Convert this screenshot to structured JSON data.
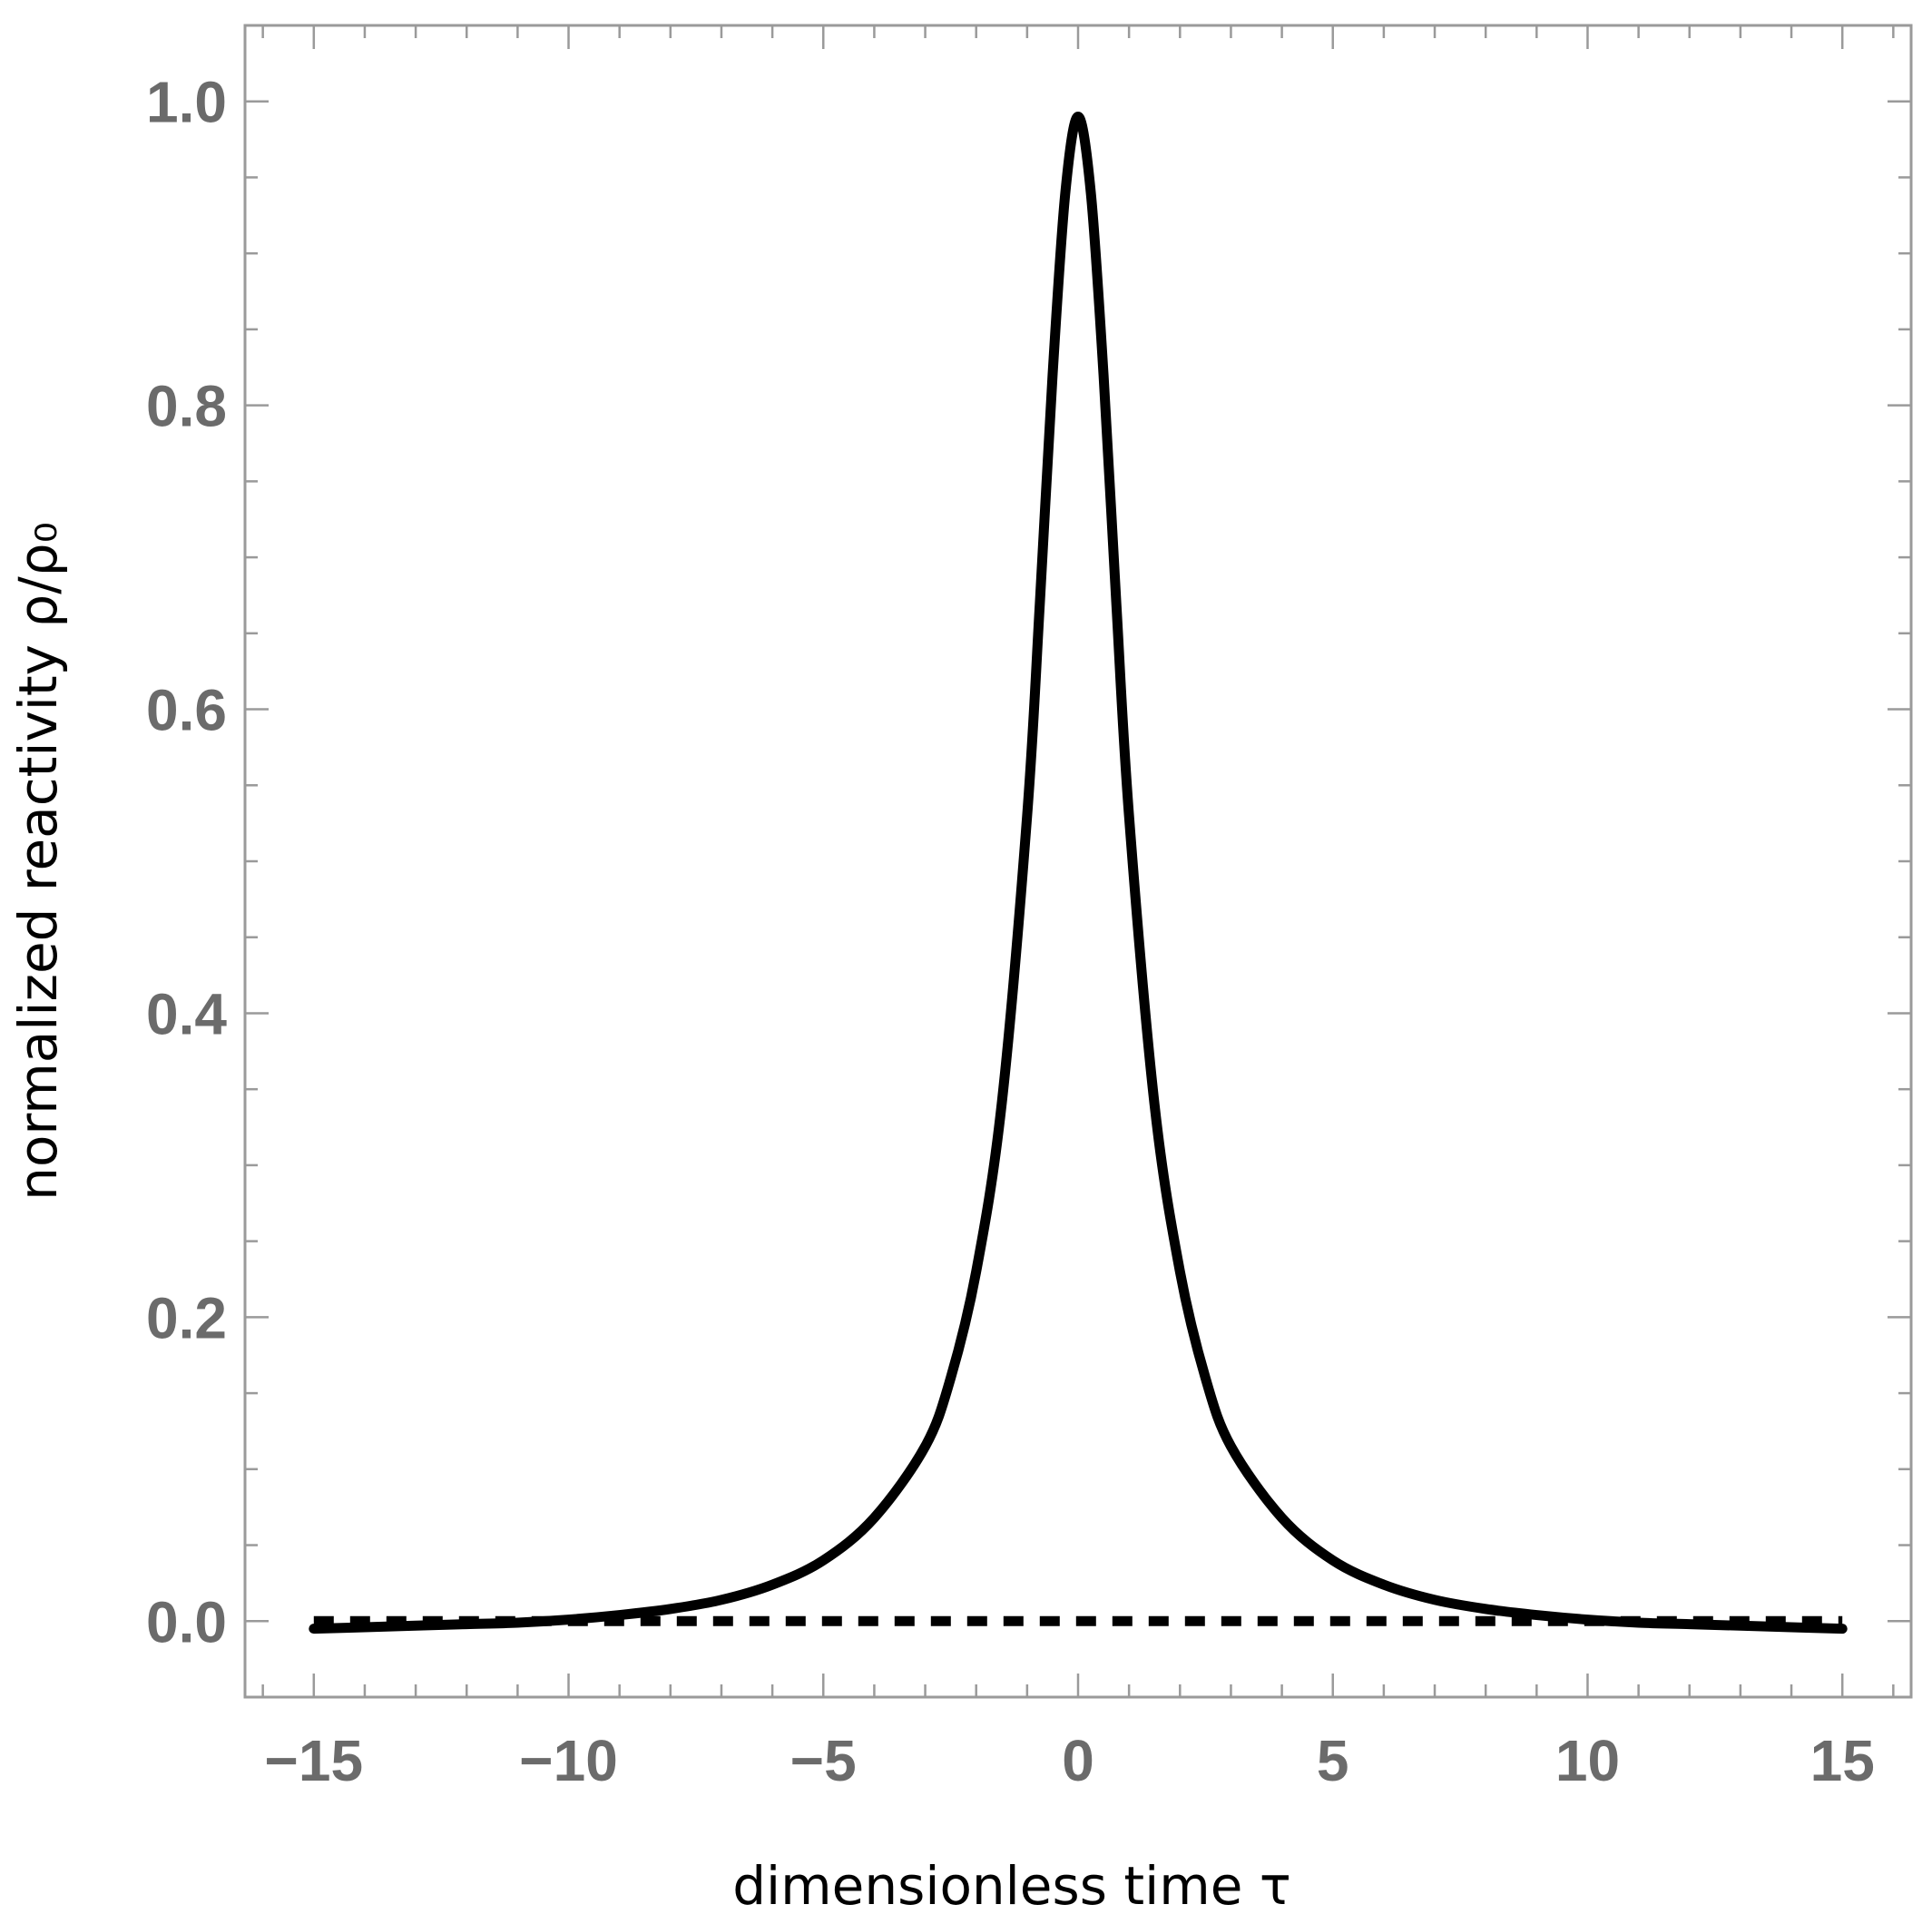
{
  "chart_data": {
    "type": "line",
    "title": "",
    "xlabel": "dimensionless time τ",
    "ylabel": "normalized reactivity ρ/ρ₀",
    "xlim": [
      -16.35,
      16.35
    ],
    "ylim": [
      -0.05,
      1.05
    ],
    "x_ticks": [
      -15,
      -10,
      -5,
      0,
      5,
      10,
      15
    ],
    "x_tick_labels": [
      "−15",
      "−10",
      "−5",
      "0",
      "5",
      "10",
      "15"
    ],
    "y_ticks": [
      0.0,
      0.2,
      0.4,
      0.6,
      0.8,
      1.0
    ],
    "y_tick_labels": [
      "0.0",
      "0.2",
      "0.4",
      "0.6",
      "0.8",
      "1.0"
    ],
    "grid": false,
    "legend": "none",
    "series": [
      {
        "style": "solid",
        "color": "#000000",
        "x": [
          -15,
          -14,
          -13,
          -12,
          -11,
          -10,
          -9,
          -8,
          -7,
          -6,
          -5,
          -4,
          -3,
          -2.5,
          -2,
          -1.5,
          -1,
          -0.75,
          -0.5,
          -0.25,
          0,
          0.25,
          0.5,
          0.75,
          1,
          1.5,
          2,
          2.5,
          3,
          4,
          5,
          6,
          7,
          8,
          9,
          10,
          11,
          12,
          13,
          14,
          15
        ],
        "y": [
          -0.005,
          -0.004,
          -0.003,
          -0.002,
          -0.001,
          0.001,
          0.004,
          0.008,
          0.014,
          0.024,
          0.04,
          0.068,
          0.115,
          0.16,
          0.23,
          0.34,
          0.53,
          0.67,
          0.82,
          0.94,
          0.99,
          0.94,
          0.82,
          0.67,
          0.53,
          0.34,
          0.23,
          0.16,
          0.115,
          0.068,
          0.04,
          0.024,
          0.014,
          0.008,
          0.004,
          0.001,
          -0.001,
          -0.002,
          -0.003,
          -0.004,
          -0.005
        ]
      },
      {
        "style": "dashed",
        "color": "#000000",
        "x": [
          -15,
          15
        ],
        "y": [
          0,
          0
        ]
      }
    ]
  }
}
